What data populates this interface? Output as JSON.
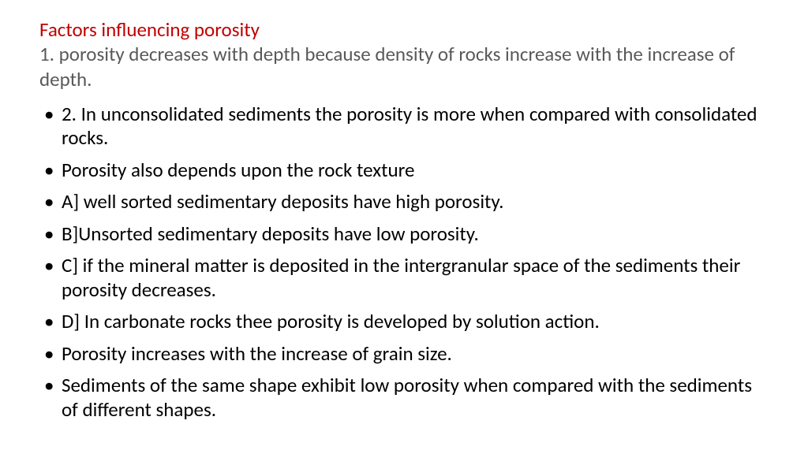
{
  "heading": {
    "title": "Factors influencing porosity",
    "subtitle": "1. porosity decreases with depth because density  of rocks increase with the increase of depth.",
    "title_color": "#c00000",
    "subtitle_color": "#595959",
    "fontsize": 25
  },
  "body": {
    "color": "#000000",
    "fontsize": 25,
    "bullets": [
      "2. In unconsolidated sediments the porosity is more when compared with consolidated rocks.",
      "Porosity also depends upon the rock texture",
      "A] well sorted sedimentary deposits have high porosity.",
      "B]Unsorted sedimentary deposits have low porosity.",
      "C]  if the mineral matter is deposited in the intergranular space of the sediments their porosity decreases.",
      "D] In carbonate rocks thee porosity is developed by solution action.",
      "Porosity increases with the increase of grain size.",
      "Sediments of the same shape exhibit low porosity when compared with the sediments of different shapes."
    ]
  },
  "background_color": "#ffffff"
}
